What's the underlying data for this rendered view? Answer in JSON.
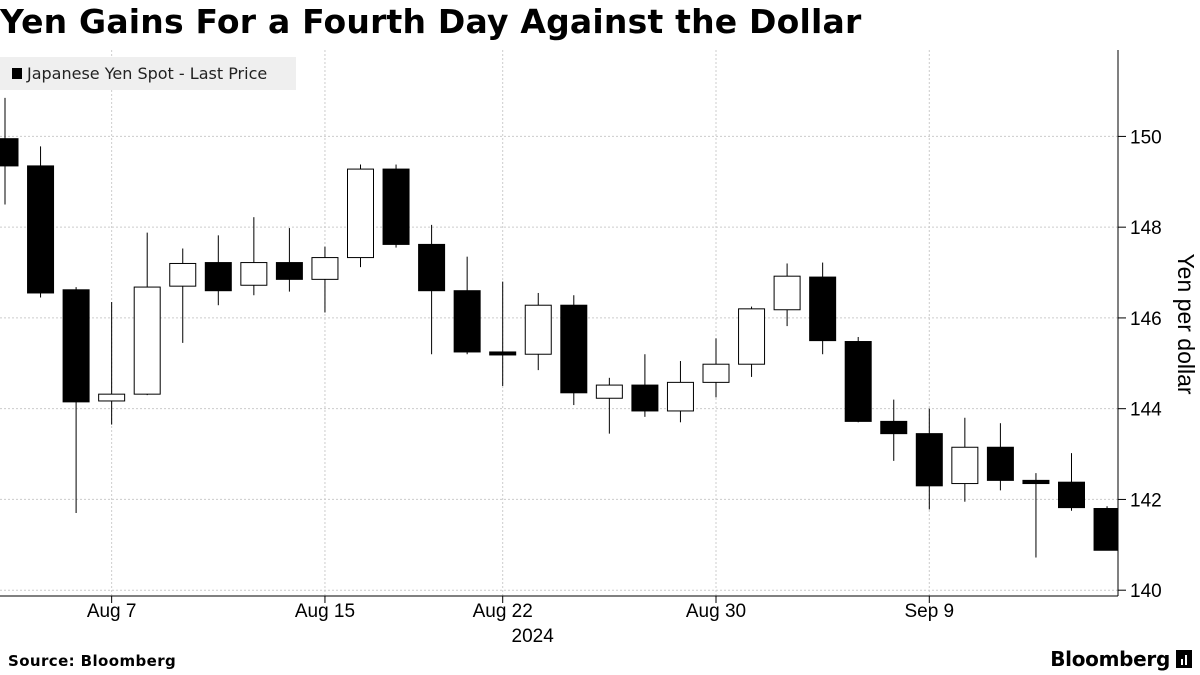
{
  "title": "Yen Gains For a Fourth Day Against the Dollar",
  "source": "Source: Bloomberg",
  "brand": "Bloomberg",
  "colors": {
    "down": "#000000",
    "up": "#ffffff",
    "grid": "#cccccc",
    "legend_bg": "#efefef"
  },
  "chart_data": {
    "type": "candlestick",
    "ylabel": "Yen per dollar",
    "xlabel_year": "2024",
    "ylim": [
      139.85,
      151.75
    ],
    "y_ticks": [
      140,
      142,
      144,
      146,
      148,
      150
    ],
    "x_tick_labels": [
      {
        "label": "Aug 7",
        "date": "2024-08-07"
      },
      {
        "label": "Aug 15",
        "date": "2024-08-15"
      },
      {
        "label": "Aug 22",
        "date": "2024-08-22"
      },
      {
        "label": "Aug 30",
        "date": "2024-08-30"
      },
      {
        "label": "Sep 9",
        "date": "2024-09-09"
      }
    ],
    "grid": true,
    "legend": {
      "position": "top-left",
      "label": "Japanese Yen Spot - Last Price"
    },
    "series": [
      {
        "name": "Japanese Yen Spot - Last Price",
        "candles": [
          {
            "date": "2024-08-02",
            "open": 149.95,
            "high": 150.85,
            "low": 148.5,
            "close": 149.35
          },
          {
            "date": "2024-08-05",
            "open": 149.35,
            "high": 149.78,
            "low": 146.45,
            "close": 146.55
          },
          {
            "date": "2024-08-06",
            "open": 146.62,
            "high": 146.68,
            "low": 141.7,
            "close": 144.15
          },
          {
            "date": "2024-08-07",
            "open": 144.17,
            "high": 146.35,
            "low": 143.65,
            "close": 144.32
          },
          {
            "date": "2024-08-08",
            "open": 144.32,
            "high": 147.88,
            "low": 144.3,
            "close": 146.68
          },
          {
            "date": "2024-08-09",
            "open": 146.7,
            "high": 147.53,
            "low": 145.45,
            "close": 147.2
          },
          {
            "date": "2024-08-12",
            "open": 147.22,
            "high": 147.82,
            "low": 146.28,
            "close": 146.6
          },
          {
            "date": "2024-08-13",
            "open": 146.72,
            "high": 148.22,
            "low": 146.5,
            "close": 147.22
          },
          {
            "date": "2024-08-14",
            "open": 147.22,
            "high": 147.98,
            "low": 146.58,
            "close": 146.85
          },
          {
            "date": "2024-08-15",
            "open": 146.85,
            "high": 147.57,
            "low": 146.12,
            "close": 147.33
          },
          {
            "date": "2024-08-16",
            "open": 147.33,
            "high": 149.38,
            "low": 147.12,
            "close": 149.28
          },
          {
            "date": "2024-08-19",
            "open": 149.28,
            "high": 149.38,
            "low": 147.55,
            "close": 147.62
          },
          {
            "date": "2024-08-20",
            "open": 147.62,
            "high": 148.05,
            "low": 145.2,
            "close": 146.6
          },
          {
            "date": "2024-08-21",
            "open": 146.6,
            "high": 147.35,
            "low": 145.2,
            "close": 145.25
          },
          {
            "date": "2024-08-22",
            "open": 145.25,
            "high": 146.8,
            "low": 144.5,
            "close": 145.2
          },
          {
            "date": "2024-08-23",
            "open": 145.2,
            "high": 146.55,
            "low": 144.85,
            "close": 146.28
          },
          {
            "date": "2024-08-26",
            "open": 146.28,
            "high": 146.5,
            "low": 144.08,
            "close": 144.35
          },
          {
            "date": "2024-08-27",
            "open": 144.23,
            "high": 144.68,
            "low": 143.45,
            "close": 144.52
          },
          {
            "date": "2024-08-28",
            "open": 144.52,
            "high": 145.2,
            "low": 143.82,
            "close": 143.95
          },
          {
            "date": "2024-08-29",
            "open": 143.95,
            "high": 145.05,
            "low": 143.7,
            "close": 144.58
          },
          {
            "date": "2024-08-30",
            "open": 144.58,
            "high": 145.55,
            "low": 144.25,
            "close": 144.98
          },
          {
            "date": "2024-09-02",
            "open": 144.98,
            "high": 146.25,
            "low": 144.7,
            "close": 146.2
          },
          {
            "date": "2024-09-03",
            "open": 146.18,
            "high": 147.2,
            "low": 145.82,
            "close": 146.92
          },
          {
            "date": "2024-09-04",
            "open": 146.9,
            "high": 147.22,
            "low": 145.2,
            "close": 145.5
          },
          {
            "date": "2024-09-05",
            "open": 145.48,
            "high": 145.58,
            "low": 143.7,
            "close": 143.72
          },
          {
            "date": "2024-09-06",
            "open": 143.72,
            "high": 144.2,
            "low": 142.85,
            "close": 143.45
          },
          {
            "date": "2024-09-09",
            "open": 143.45,
            "high": 144.0,
            "low": 141.78,
            "close": 142.3
          },
          {
            "date": "2024-09-10",
            "open": 142.35,
            "high": 143.8,
            "low": 141.95,
            "close": 143.15
          },
          {
            "date": "2024-09-11",
            "open": 143.15,
            "high": 143.68,
            "low": 142.2,
            "close": 142.42
          },
          {
            "date": "2024-09-12",
            "open": 142.42,
            "high": 142.58,
            "low": 140.72,
            "close": 142.35
          },
          {
            "date": "2024-09-13",
            "open": 142.38,
            "high": 143.02,
            "low": 141.75,
            "close": 141.82
          },
          {
            "date": "2024-09-16",
            "open": 141.8,
            "high": 141.85,
            "low": 140.88,
            "close": 140.88
          }
        ]
      }
    ]
  }
}
